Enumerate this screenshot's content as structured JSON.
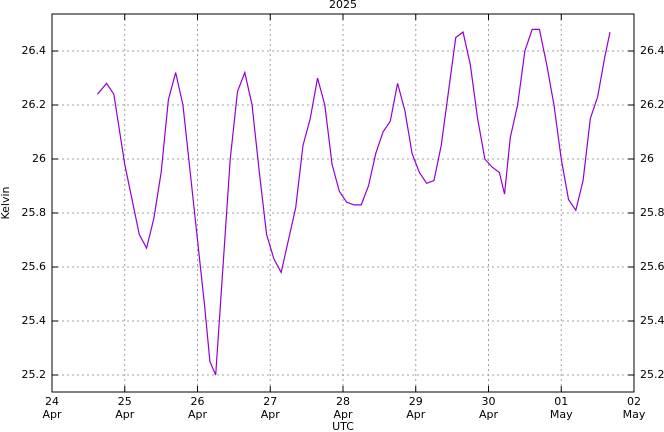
{
  "chart_data": {
    "type": "line",
    "title": "2025",
    "xlabel": "UTC",
    "ylabel": "Kelvin",
    "x": [
      "2025-04-24T15:00",
      "2025-04-24T18:00",
      "2025-04-24T20:24",
      "2025-04-25T00:00",
      "2025-04-25T02:24",
      "2025-04-25T04:48",
      "2025-04-25T07:12",
      "2025-04-25T09:36",
      "2025-04-25T12:00",
      "2025-04-25T14:24",
      "2025-04-25T16:48",
      "2025-04-25T19:12",
      "2025-04-25T21:36",
      "2025-04-26T00:00",
      "2025-04-26T02:24",
      "2025-04-26T04:05",
      "2025-04-26T06:00",
      "2025-04-26T08:24",
      "2025-04-26T10:48",
      "2025-04-26T13:12",
      "2025-04-26T15:36",
      "2025-04-26T18:00",
      "2025-04-26T20:24",
      "2025-04-26T22:48",
      "2025-04-27T01:12",
      "2025-04-27T03:36",
      "2025-04-27T06:00",
      "2025-04-27T08:24",
      "2025-04-27T10:48",
      "2025-04-27T13:12",
      "2025-04-27T15:36",
      "2025-04-27T18:00",
      "2025-04-27T20:24",
      "2025-04-27T22:48",
      "2025-04-28T01:12",
      "2025-04-28T03:36",
      "2025-04-28T06:00",
      "2025-04-28T08:24",
      "2025-04-28T10:48",
      "2025-04-28T13:12",
      "2025-04-28T15:36",
      "2025-04-28T18:00",
      "2025-04-28T20:24",
      "2025-04-28T22:48",
      "2025-04-29T01:12",
      "2025-04-29T03:36",
      "2025-04-29T06:00",
      "2025-04-29T08:24",
      "2025-04-29T10:48",
      "2025-04-29T13:12",
      "2025-04-29T15:36",
      "2025-04-29T18:00",
      "2025-04-29T20:24",
      "2025-04-29T22:48",
      "2025-04-30T01:12",
      "2025-04-30T03:36",
      "2025-04-30T05:17",
      "2025-04-30T07:12",
      "2025-04-30T09:36",
      "2025-04-30T12:00",
      "2025-04-30T14:24",
      "2025-04-30T16:48",
      "2025-04-30T19:12",
      "2025-04-30T21:36",
      "2025-05-01T00:00",
      "2025-05-01T02:24",
      "2025-05-01T04:48",
      "2025-05-01T07:12",
      "2025-05-01T09:36",
      "2025-05-01T12:00",
      "2025-05-01T14:24",
      "2025-05-01T16:05"
    ],
    "series": [
      {
        "name": "Kelvin",
        "color": "#9400d3",
        "values": [
          26.24,
          26.28,
          26.24,
          25.98,
          25.85,
          25.72,
          25.67,
          25.78,
          25.95,
          26.22,
          26.32,
          26.2,
          25.95,
          25.7,
          25.45,
          25.25,
          25.2,
          25.6,
          26.0,
          26.25,
          26.32,
          26.2,
          25.95,
          25.72,
          25.63,
          25.58,
          25.7,
          25.82,
          26.05,
          26.15,
          26.3,
          26.2,
          25.98,
          25.88,
          25.84,
          25.83,
          25.83,
          25.9,
          26.02,
          26.1,
          26.14,
          26.28,
          26.18,
          26.02,
          25.95,
          25.91,
          25.92,
          26.05,
          26.25,
          26.45,
          26.47,
          26.35,
          26.15,
          26.0,
          25.97,
          25.95,
          25.87,
          26.08,
          26.2,
          26.4,
          26.48,
          26.48,
          26.35,
          26.2,
          26.0,
          25.85,
          25.81,
          25.92,
          26.15,
          26.23,
          26.38,
          26.47
        ]
      }
    ],
    "xlim": [
      "2025-04-24T00:00",
      "2025-05-02T00:00"
    ],
    "xticks": [
      {
        "value": "2025-04-24T00:00",
        "label": [
          "24",
          "Apr"
        ]
      },
      {
        "value": "2025-04-25T00:00",
        "label": [
          "25",
          "Apr"
        ]
      },
      {
        "value": "2025-04-26T00:00",
        "label": [
          "26",
          "Apr"
        ]
      },
      {
        "value": "2025-04-27T00:00",
        "label": [
          "27",
          "Apr"
        ]
      },
      {
        "value": "2025-04-28T00:00",
        "label": [
          "28",
          "Apr"
        ]
      },
      {
        "value": "2025-04-29T00:00",
        "label": [
          "29",
          "Apr"
        ]
      },
      {
        "value": "2025-04-30T00:00",
        "label": [
          "30",
          "Apr"
        ]
      },
      {
        "value": "2025-05-01T00:00",
        "label": [
          "01",
          "May"
        ]
      },
      {
        "value": "2025-05-02T00:00",
        "label": [
          "02",
          "May"
        ]
      }
    ],
    "ylim": [
      25.137,
      26.537
    ],
    "yticks": [
      25.2,
      25.4,
      25.6,
      25.8,
      26,
      26.2,
      26.4
    ],
    "grid": true
  }
}
